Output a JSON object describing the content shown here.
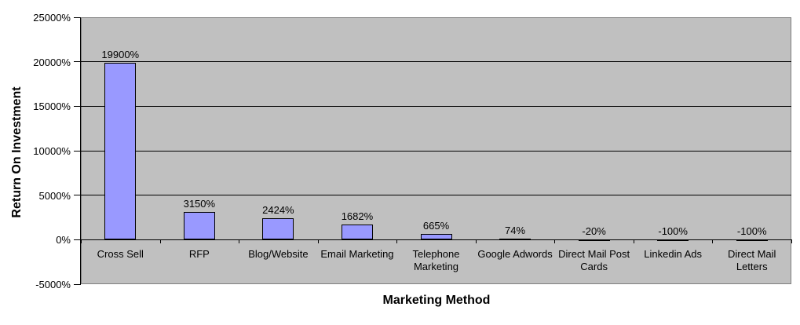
{
  "chart_data": {
    "type": "bar",
    "title": "",
    "xlabel": "Marketing Method",
    "ylabel": "Return On Investment",
    "categories": [
      "Cross Sell",
      "RFP",
      "Blog/Website",
      "Email Marketing",
      "Telephone Marketing",
      "Google Adwords",
      "Direct Mail Post Cards",
      "Linkedin Ads",
      "Direct Mail Letters"
    ],
    "category_label_lines": [
      [
        "Cross Sell"
      ],
      [
        "RFP"
      ],
      [
        "Blog/Website"
      ],
      [
        "Email Marketing"
      ],
      [
        "Telephone",
        "Marketing"
      ],
      [
        "Google Adwords"
      ],
      [
        "Direct Mail Post",
        "Cards"
      ],
      [
        "Linkedin Ads"
      ],
      [
        "Direct Mail",
        "Letters"
      ]
    ],
    "values": [
      19900,
      3150,
      2424,
      1682,
      665,
      74,
      -20,
      -100,
      -100
    ],
    "data_labels": [
      "19900%",
      "3150%",
      "2424%",
      "1682%",
      "665%",
      "74%",
      "-20%",
      "-100%",
      "-100%"
    ],
    "ylim": [
      -5000,
      25000
    ],
    "ytick_step": 5000,
    "ytick_values": [
      25000,
      20000,
      15000,
      10000,
      5000,
      0,
      -5000
    ],
    "ytick_labels": [
      "25000%",
      "20000%",
      "15000%",
      "10000%",
      "5000%",
      "0%",
      "-5000%"
    ],
    "ygrid_values": [
      20000,
      15000,
      10000,
      5000,
      0
    ],
    "grid": true,
    "legend": "none",
    "colors": {
      "bar_fill": "#9999FF",
      "bar_border": "#000000",
      "plot_background": "#C0C0C0",
      "plot_border": "#808080",
      "gridline": "#000000",
      "text": "#000000",
      "page_background": "#FFFFFF"
    }
  }
}
